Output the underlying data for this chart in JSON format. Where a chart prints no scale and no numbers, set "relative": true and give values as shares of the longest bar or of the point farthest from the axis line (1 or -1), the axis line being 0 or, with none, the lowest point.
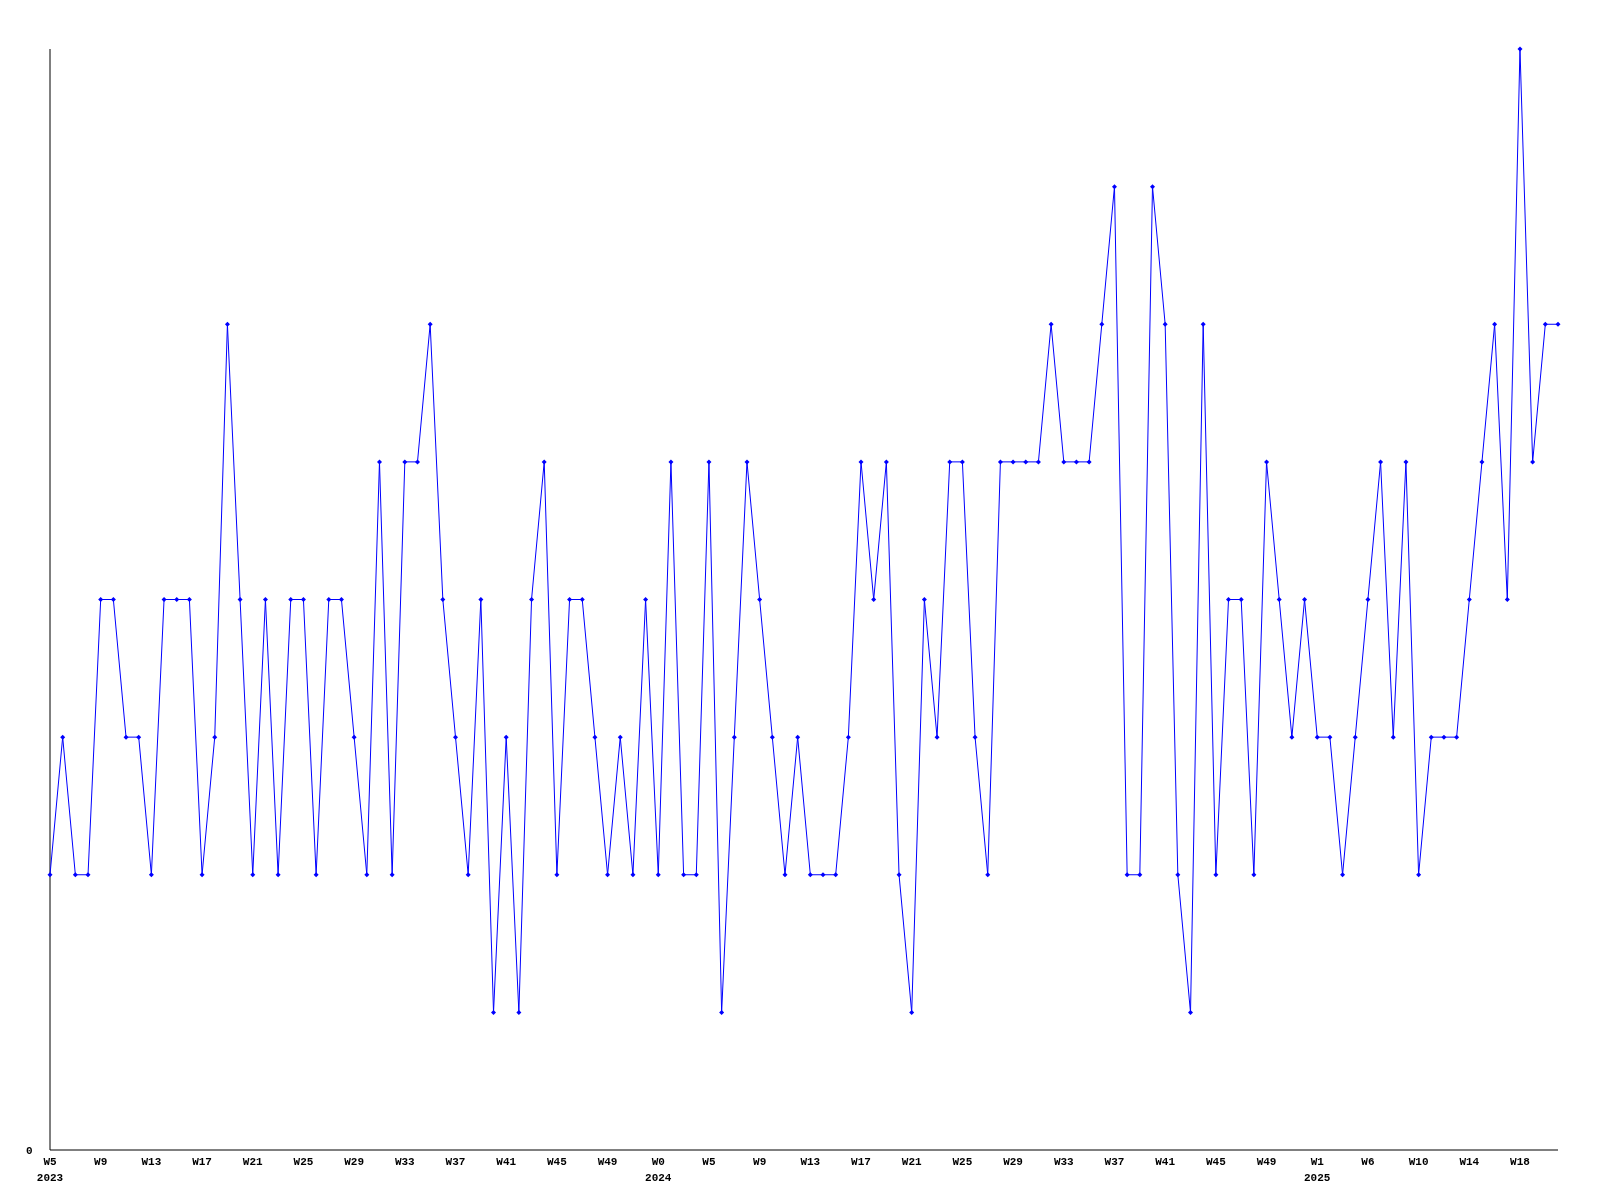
{
  "chart_data": {
    "type": "line",
    "relative": true,
    "marker": "diamond",
    "categories": [
      "W5\n2023",
      null,
      null,
      null,
      "W9",
      null,
      null,
      null,
      "W13",
      null,
      null,
      null,
      "W17",
      null,
      null,
      null,
      "W21",
      null,
      null,
      null,
      "W25",
      null,
      null,
      null,
      "W29",
      null,
      null,
      null,
      "W33",
      null,
      null,
      null,
      "W37",
      null,
      null,
      null,
      "W41",
      null,
      null,
      null,
      "W45",
      null,
      null,
      null,
      "W49",
      null,
      null,
      null,
      "W0\n2024",
      null,
      null,
      null,
      "W5",
      null,
      null,
      null,
      "W9",
      null,
      null,
      null,
      "W13",
      null,
      null,
      null,
      "W17",
      null,
      null,
      null,
      "W21",
      null,
      null,
      null,
      "W25",
      null,
      null,
      null,
      "W29",
      null,
      null,
      null,
      "W33",
      null,
      null,
      null,
      "W37",
      null,
      null,
      null,
      "W41",
      null,
      null,
      null,
      "W45",
      null,
      null,
      null,
      "W49",
      null,
      null,
      null,
      "W1\n2025",
      null,
      null,
      null,
      "W6",
      null,
      null,
      null,
      "W10",
      null,
      null,
      null,
      "W14",
      null,
      null,
      null,
      "W18",
      null,
      null,
      null
    ],
    "series": [
      {
        "color": "#0000ff",
        "values": [
          0.25,
          0.375,
          0.25,
          0.25,
          0.5,
          0.5,
          0.375,
          0.375,
          0.25,
          0.5,
          0.5,
          0.5,
          0.25,
          0.375,
          0.75,
          0.5,
          0.25,
          0.5,
          0.25,
          0.5,
          0.5,
          0.25,
          0.5,
          0.5,
          0.375,
          0.25,
          0.625,
          0.25,
          0.625,
          0.625,
          0.75,
          0.5,
          0.375,
          0.25,
          0.5,
          0.125,
          0.375,
          0.125,
          0.5,
          0.625,
          0.25,
          0.5,
          0.5,
          0.375,
          0.25,
          0.375,
          0.25,
          0.5,
          0.25,
          0.625,
          0.25,
          0.25,
          0.625,
          0.125,
          0.375,
          0.625,
          0.5,
          0.375,
          0.25,
          0.375,
          0.25,
          0.25,
          0.25,
          0.375,
          0.625,
          0.5,
          0.625,
          0.25,
          0.125,
          0.5,
          0.375,
          0.625,
          0.625,
          0.375,
          0.25,
          0.625,
          0.625,
          0.625,
          0.625,
          0.75,
          0.625,
          0.625,
          0.625,
          0.75,
          0.875,
          0.25,
          0.25,
          0.875,
          0.75,
          0.25,
          0.125,
          0.75,
          0.25,
          0.5,
          0.5,
          0.25,
          0.625,
          0.5,
          0.375,
          0.5,
          0.375,
          0.375,
          0.25,
          0.375,
          0.5,
          0.625,
          0.375,
          0.625,
          0.25,
          0.375,
          0.375,
          0.375,
          0.5,
          0.625,
          0.75,
          0.5,
          1,
          0.625,
          0.75,
          0.75
        ]
      }
    ],
    "annotations": [
      "0"
    ]
  }
}
